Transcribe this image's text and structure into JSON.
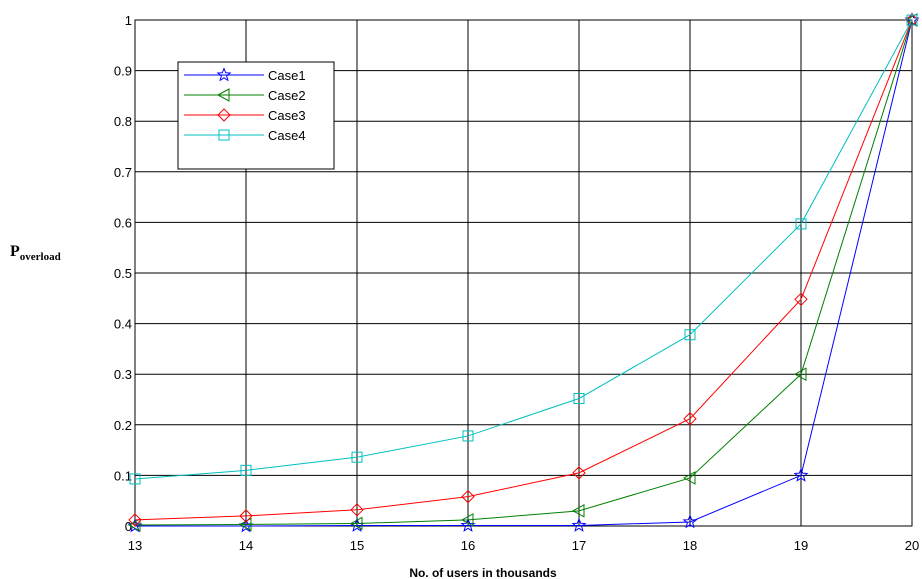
{
  "chart_data": {
    "type": "line",
    "x": [
      13,
      14,
      15,
      16,
      17,
      18,
      19,
      20
    ],
    "xlabel": "No. of users in thousands",
    "ylabel_main": "P",
    "ylabel_sub": "overload",
    "xlim": [
      13,
      20
    ],
    "ylim": [
      0,
      1
    ],
    "xticks": [
      "13",
      "14",
      "15",
      "16",
      "17",
      "18",
      "19",
      "20"
    ],
    "yticks": [
      "0",
      "0.1",
      "0.2",
      "0.3",
      "0.4",
      "0.5",
      "0.6",
      "0.7",
      "0.8",
      "0.9",
      "1"
    ],
    "grid": true,
    "legend_position": "top-left",
    "series": [
      {
        "name": "Case1",
        "color": "#0000ff",
        "marker": "star",
        "values": [
          0.0,
          0.0,
          0.001,
          0.001,
          0.001,
          0.008,
          0.1,
          1.0
        ]
      },
      {
        "name": "Case2",
        "color": "#007f00",
        "marker": "triangle-left",
        "values": [
          0.002,
          0.003,
          0.005,
          0.012,
          0.03,
          0.095,
          0.3,
          1.0
        ]
      },
      {
        "name": "Case3",
        "color": "#ff0000",
        "marker": "diamond",
        "values": [
          0.012,
          0.02,
          0.032,
          0.058,
          0.105,
          0.212,
          0.448,
          1.0
        ]
      },
      {
        "name": "Case4",
        "color": "#00bfbf",
        "marker": "square",
        "values": [
          0.093,
          0.11,
          0.136,
          0.178,
          0.252,
          0.378,
          0.597,
          1.0
        ]
      }
    ]
  }
}
